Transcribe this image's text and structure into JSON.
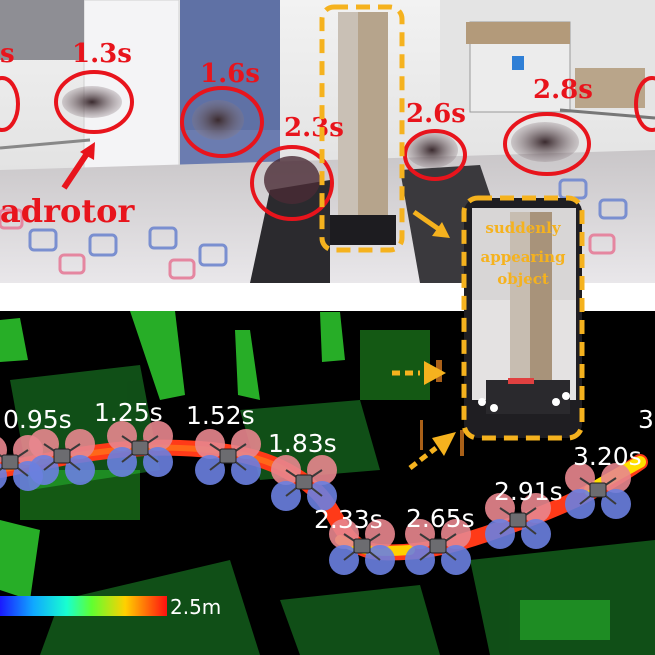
{
  "top_panel": {
    "photo_time_labels": [
      "1.3s",
      "1.6s",
      "2.3s",
      "2.6s",
      "2.8s"
    ],
    "quadrotor_label": "adrotor",
    "callout_lines": [
      "suddenly",
      "appearing",
      "object"
    ]
  },
  "bottom_panel": {
    "trajectory_time_labels": [
      "0.95s",
      "1.25s",
      "1.52s",
      "1.83s",
      "2.33s",
      "2.65s",
      "2.91s",
      "3.20s",
      "3"
    ],
    "colorbar_max_label": "2.5m"
  },
  "colors": {
    "annotation_red": "#e8141c",
    "highlight_orange": "#f5b21e",
    "pointcloud_green": "#2ecc2e",
    "rotor_red": "#e8868e",
    "rotor_blue": "#6a7fe0"
  },
  "icons": [
    "drone-icon",
    "arrow-icon"
  ]
}
